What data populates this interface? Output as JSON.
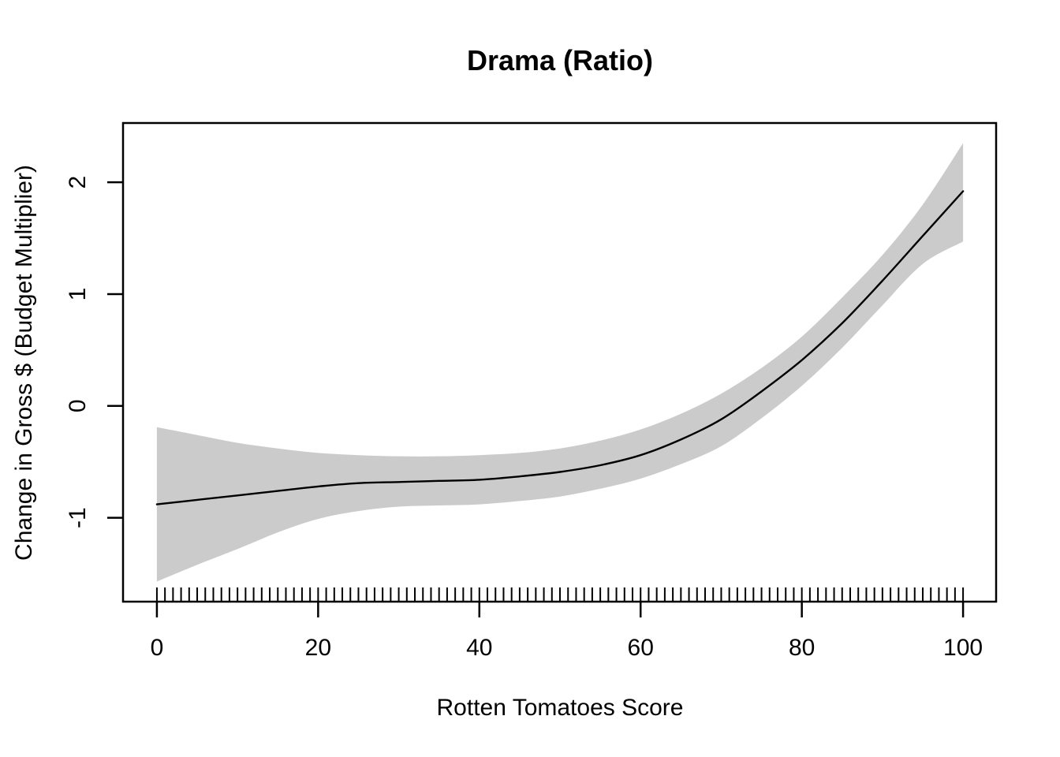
{
  "chart_data": {
    "type": "line",
    "title": "Drama (Ratio)",
    "xlabel": "Rotten Tomatoes Score",
    "ylabel": "Change in Gross $ (Budget Multiplier)",
    "x_ticks": [
      0,
      20,
      40,
      60,
      80,
      100
    ],
    "y_ticks": [
      -1,
      0,
      1,
      2
    ],
    "xlim": [
      -4.2,
      104.1
    ],
    "ylim": [
      -1.75,
      2.53
    ],
    "grid": false,
    "legend": null,
    "colors": {
      "band": "#CBCBCB",
      "line": "#000000",
      "axis": "#000000",
      "background": "#FFFFFF"
    },
    "x": [
      0,
      5,
      10,
      15,
      20,
      25,
      30,
      35,
      40,
      45,
      50,
      55,
      60,
      65,
      70,
      75,
      80,
      85,
      90,
      95,
      100
    ],
    "series": [
      {
        "name": "smooth-fit",
        "values": [
          -0.88,
          -0.84,
          -0.8,
          -0.76,
          -0.72,
          -0.69,
          -0.68,
          -0.67,
          -0.66,
          -0.63,
          -0.59,
          -0.53,
          -0.44,
          -0.3,
          -0.12,
          0.13,
          0.41,
          0.74,
          1.12,
          1.52,
          1.92
        ]
      },
      {
        "name": "ci-upper",
        "values": [
          -0.19,
          -0.26,
          -0.33,
          -0.38,
          -0.42,
          -0.44,
          -0.45,
          -0.45,
          -0.44,
          -0.42,
          -0.38,
          -0.31,
          -0.21,
          -0.07,
          0.11,
          0.34,
          0.62,
          0.97,
          1.35,
          1.8,
          2.35
        ]
      },
      {
        "name": "ci-lower",
        "values": [
          -1.57,
          -1.42,
          -1.28,
          -1.13,
          -1.01,
          -0.94,
          -0.9,
          -0.89,
          -0.88,
          -0.85,
          -0.81,
          -0.74,
          -0.65,
          -0.52,
          -0.36,
          -0.11,
          0.18,
          0.52,
          0.9,
          1.27,
          1.47
        ]
      }
    ],
    "rug_x": [
      0,
      1,
      2,
      3,
      4,
      5,
      6,
      7,
      8,
      9,
      10,
      11,
      12,
      13,
      14,
      15,
      16,
      17,
      18,
      19,
      20,
      21,
      22,
      23,
      24,
      25,
      26,
      27,
      28,
      29,
      30,
      31,
      32,
      33,
      34,
      35,
      36,
      37,
      38,
      39,
      40,
      41,
      42,
      43,
      44,
      45,
      46,
      47,
      48,
      49,
      50,
      51,
      52,
      53,
      54,
      55,
      56,
      57,
      58,
      59,
      60,
      61,
      62,
      63,
      64,
      65,
      66,
      67,
      68,
      69,
      70,
      71,
      72,
      73,
      74,
      75,
      76,
      77,
      78,
      79,
      80,
      81,
      82,
      83,
      84,
      85,
      86,
      87,
      88,
      89,
      90,
      91,
      92,
      93,
      94,
      95,
      96,
      97,
      98,
      99,
      100
    ]
  }
}
